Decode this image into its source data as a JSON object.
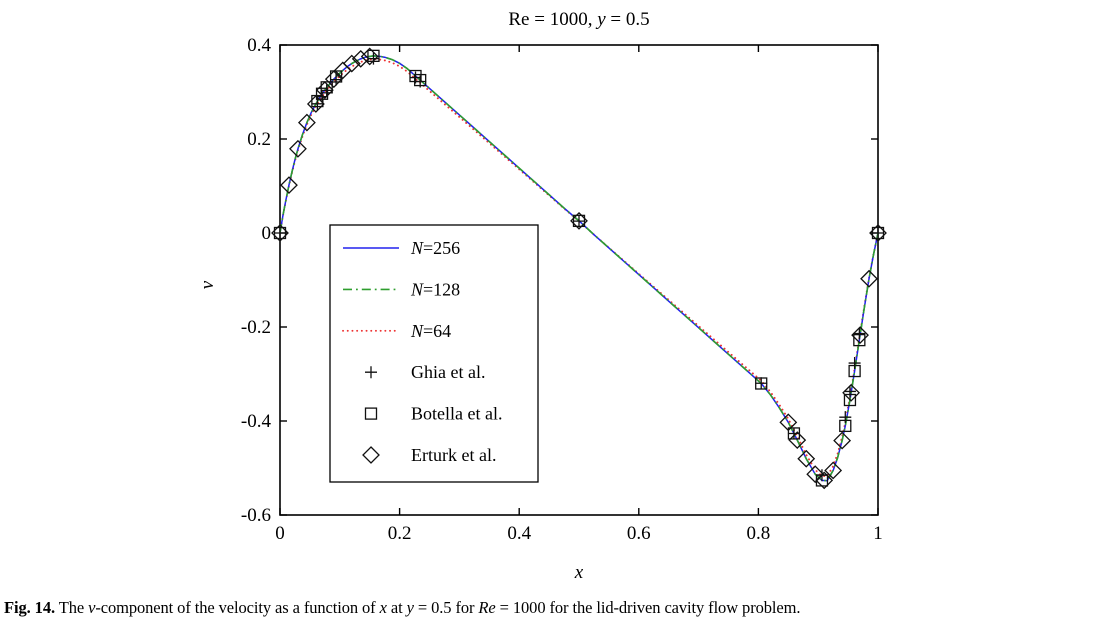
{
  "title": {
    "parts": [
      {
        "text": "Re = 1000, ",
        "italic": false
      },
      {
        "text": "y",
        "italic": true
      },
      {
        "text": " = 0.5",
        "italic": false
      }
    ]
  },
  "caption": {
    "parts": [
      {
        "text": "Fig. 14.",
        "bold": true
      },
      {
        "text": " The ",
        "italic": false
      },
      {
        "text": "v",
        "italic": true
      },
      {
        "text": "-component of the velocity as a function of ",
        "italic": false
      },
      {
        "text": "x",
        "italic": true
      },
      {
        "text": " at ",
        "italic": false
      },
      {
        "text": "y",
        "italic": true
      },
      {
        "text": " = 0.5 for ",
        "italic": false
      },
      {
        "text": "Re",
        "italic": true
      },
      {
        "text": " = 1000 for the lid-driven cavity flow problem.",
        "italic": false
      }
    ]
  },
  "chart_data": {
    "type": "line",
    "title": "Re = 1000, y = 0.5",
    "xlabel": "x",
    "ylabel": "v",
    "xlim": [
      0,
      1
    ],
    "ylim": [
      -0.6,
      0.4
    ],
    "grid": false,
    "legend_position": "center-left",
    "x_ticks": [
      {
        "v": 0,
        "label": "0"
      },
      {
        "v": 0.2,
        "label": "0.2"
      },
      {
        "v": 0.4,
        "label": "0.4"
      },
      {
        "v": 0.6,
        "label": "0.6"
      },
      {
        "v": 0.8,
        "label": "0.8"
      },
      {
        "v": 1,
        "label": "1"
      }
    ],
    "y_ticks": [
      {
        "v": 0.4,
        "label": "0.4"
      },
      {
        "v": 0.2,
        "label": "0.2"
      },
      {
        "v": 0,
        "label": "0"
      },
      {
        "v": -0.2,
        "label": "-0.2"
      },
      {
        "v": -0.4,
        "label": "-0.4"
      },
      {
        "v": -0.6,
        "label": "-0.6"
      }
    ],
    "base_curve": {
      "x": [
        0,
        0.005,
        0.01,
        0.015,
        0.02,
        0.025,
        0.03,
        0.0375,
        0.045,
        0.0525,
        0.06,
        0.0675,
        0.075,
        0.0825,
        0.09,
        0.0975,
        0.105,
        0.1125,
        0.12,
        0.1275,
        0.135,
        0.1425,
        0.15,
        0.1563,
        0.165,
        0.175,
        0.1875,
        0.2,
        0.2125,
        0.2266,
        0.2344,
        0.25,
        0.275,
        0.3,
        0.325,
        0.35,
        0.375,
        0.4,
        0.425,
        0.45,
        0.475,
        0.5,
        0.525,
        0.55,
        0.575,
        0.6,
        0.625,
        0.65,
        0.675,
        0.7,
        0.725,
        0.75,
        0.775,
        0.79,
        0.8047,
        0.82,
        0.835,
        0.85,
        0.865,
        0.88,
        0.895,
        0.9063,
        0.915,
        0.925,
        0.9325,
        0.94,
        0.9453,
        0.9531,
        0.9609,
        0.9688,
        0.9766,
        0.985,
        0.9925,
        1
      ],
      "v": [
        0,
        0.038,
        0.071,
        0.102,
        0.13,
        0.156,
        0.179,
        0.209,
        0.235,
        0.257,
        0.2746,
        0.29,
        0.3041,
        0.316,
        0.3273,
        0.337,
        0.346,
        0.354,
        0.3605,
        0.366,
        0.3705,
        0.374,
        0.3756,
        0.3769,
        0.3762,
        0.374,
        0.369,
        0.361,
        0.35,
        0.334,
        0.3254,
        0.3077,
        0.2794,
        0.2512,
        0.2229,
        0.1946,
        0.1663,
        0.138,
        0.1097,
        0.0814,
        0.0531,
        0.0258,
        -0.0035,
        -0.0318,
        -0.0601,
        -0.0884,
        -0.1167,
        -0.145,
        -0.1732,
        -0.2015,
        -0.2298,
        -0.2581,
        -0.2864,
        -0.3033,
        -0.3202,
        -0.344,
        -0.372,
        -0.4028,
        -0.4407,
        -0.4803,
        -0.5132,
        -0.5264,
        -0.527,
        -0.5052,
        -0.478,
        -0.4417,
        -0.4104,
        -0.3553,
        -0.2937,
        -0.2279,
        -0.163,
        -0.0973,
        -0.046,
        0
      ]
    },
    "series": [
      {
        "name": "N=256",
        "kind": "line",
        "style": "solid",
        "color": "#2222ee",
        "source": "base_curve",
        "scale": 1
      },
      {
        "name": "N=128",
        "kind": "line",
        "style": "dashdot",
        "color": "#2e9e2e",
        "source": "base_curve",
        "scale": 1
      },
      {
        "name": "N=64",
        "kind": "line",
        "style": "dotted",
        "color": "#ee3333",
        "source": "base_curve",
        "scale": 0.982
      },
      {
        "name": "Ghia et al.",
        "kind": "markers",
        "marker": "plus",
        "color": "#111111",
        "x": [
          0,
          0.0625,
          0.0703,
          0.0781,
          0.0938,
          0.1563,
          0.2266,
          0.2344,
          0.5,
          0.8047,
          0.8594,
          0.9063,
          0.9453,
          0.9531,
          0.9609,
          0.9688,
          1
        ],
        "v": [
          0,
          0.27485,
          0.29012,
          0.30353,
          0.32627,
          0.37095,
          0.33075,
          0.32235,
          0.02526,
          -0.31966,
          -0.42665,
          -0.5155,
          -0.39188,
          -0.33714,
          -0.27669,
          -0.21388,
          0
        ]
      },
      {
        "name": "Botella et al.",
        "kind": "markers",
        "marker": "square",
        "color": "#111111",
        "x": [
          0,
          0.0625,
          0.0703,
          0.0781,
          0.0938,
          0.1563,
          0.2266,
          0.2344,
          0.5,
          0.8047,
          0.8594,
          0.9063,
          0.9453,
          0.9531,
          0.9609,
          0.9688,
          1
        ],
        "v": [
          0,
          0.28071,
          0.29627,
          0.30991,
          0.33304,
          0.37692,
          0.33399,
          0.32536,
          0.0258,
          -0.32021,
          -0.42645,
          -0.52644,
          -0.41038,
          -0.35532,
          -0.29369,
          -0.22792,
          0
        ]
      },
      {
        "name": "Erturk et al.",
        "kind": "markers",
        "marker": "diamond",
        "color": "#111111",
        "x": [
          0,
          0.015,
          0.03,
          0.045,
          0.06,
          0.075,
          0.09,
          0.105,
          0.12,
          0.135,
          0.15,
          0.5,
          0.85,
          0.865,
          0.88,
          0.895,
          0.91,
          0.925,
          0.94,
          0.955,
          0.97,
          0.985,
          1
        ],
        "v": [
          0,
          0.1019,
          0.1792,
          0.2349,
          0.2746,
          0.3041,
          0.3273,
          0.346,
          0.3605,
          0.3705,
          0.3756,
          0.0258,
          -0.4028,
          -0.4407,
          -0.4803,
          -0.5132,
          -0.5263,
          -0.5052,
          -0.4417,
          -0.34,
          -0.2173,
          -0.0973,
          0
        ]
      }
    ],
    "legend": {
      "items": [
        {
          "series": 0,
          "italic": "N",
          "label": "=256"
        },
        {
          "series": 1,
          "italic": "N",
          "label": "=128"
        },
        {
          "series": 2,
          "italic": "N",
          "label": "=64"
        },
        {
          "series": 3,
          "italic": "",
          "label": "Ghia et al."
        },
        {
          "series": 4,
          "italic": "",
          "label": "Botella et al."
        },
        {
          "series": 5,
          "italic": "",
          "label": "Erturk et al."
        }
      ]
    }
  }
}
